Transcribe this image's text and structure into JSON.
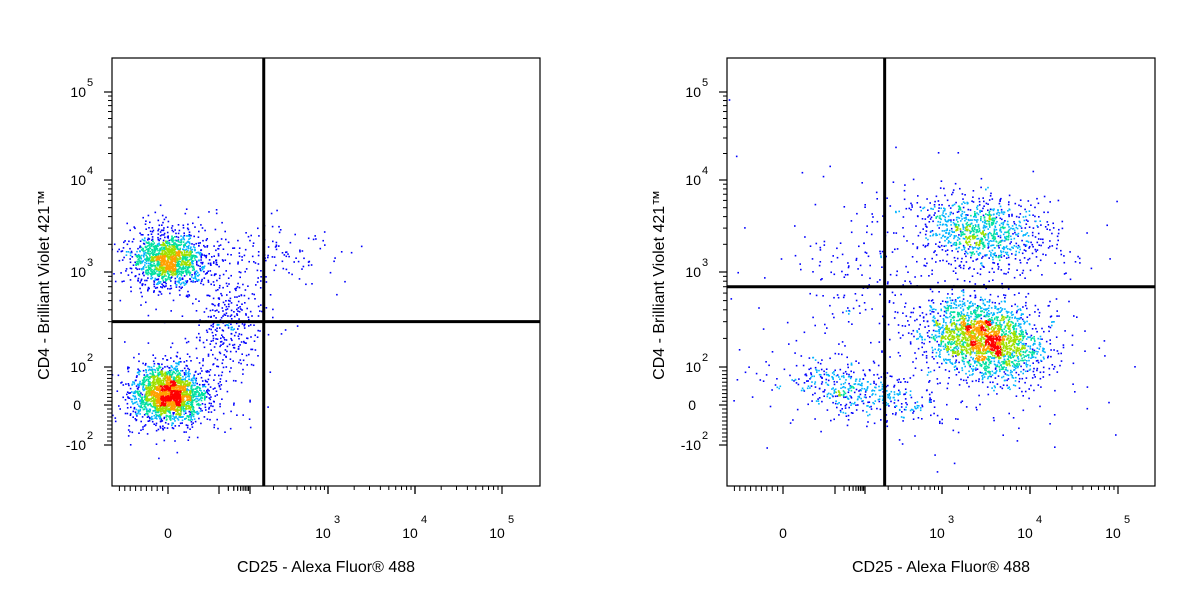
{
  "chart_data": [
    {
      "type": "scatter",
      "title": "",
      "xlabel": "CD25 - Alexa Fluor® 488",
      "ylabel": "CD4 - Brilliant Violet 421™",
      "x_scale": "biexponential",
      "y_scale": "biexponential",
      "x_ticks": [
        {
          "value": 0,
          "label": "0",
          "exp": ""
        },
        {
          "value": 1000,
          "label": "10",
          "exp": "3"
        },
        {
          "value": 10000,
          "label": "10",
          "exp": "4"
        },
        {
          "value": 100000,
          "label": "10",
          "exp": "5"
        }
      ],
      "y_ticks": [
        {
          "value": 100000,
          "label": "10",
          "exp": "5"
        },
        {
          "value": 10000,
          "label": "10",
          "exp": "4"
        },
        {
          "value": 1000,
          "label": "10",
          "exp": "3"
        },
        {
          "value": 100,
          "label": "10",
          "exp": "2"
        },
        {
          "value": 0,
          "label": "0",
          "exp": ""
        },
        {
          "value": -100,
          "label": "-10",
          "exp": "2"
        }
      ],
      "quadrant_gate": {
        "x": 150,
        "y": 300
      },
      "grid": false,
      "legend": "none",
      "colormap": [
        "#0000ff",
        "#00b4ff",
        "#00e0a0",
        "#a0e000",
        "#ffa000",
        "#ff0000"
      ],
      "populations": [
        {
          "x": 0,
          "y": 1400,
          "events": 1500
        },
        {
          "x": 0,
          "y": 30,
          "events": 2200
        },
        {
          "x": 20,
          "y": 300,
          "events": 300
        },
        {
          "x": 200,
          "y": 1500,
          "events": 120
        }
      ]
    },
    {
      "type": "scatter",
      "title": "",
      "xlabel": "CD25 - Alexa Fluor® 488",
      "ylabel": "CD4 - Brilliant Violet 421™",
      "x_scale": "biexponential",
      "y_scale": "biexponential",
      "x_ticks": [
        {
          "value": 0,
          "label": "0",
          "exp": ""
        },
        {
          "value": 1000,
          "label": "10",
          "exp": "3"
        },
        {
          "value": 10000,
          "label": "10",
          "exp": "4"
        },
        {
          "value": 100000,
          "label": "10",
          "exp": "5"
        }
      ],
      "y_ticks": [
        {
          "value": 100000,
          "label": "10",
          "exp": "5"
        },
        {
          "value": 10000,
          "label": "10",
          "exp": "4"
        },
        {
          "value": 1000,
          "label": "10",
          "exp": "3"
        },
        {
          "value": 100,
          "label": "10",
          "exp": "2"
        },
        {
          "value": 0,
          "label": "0",
          "exp": ""
        },
        {
          "value": -100,
          "label": "-10",
          "exp": "2"
        }
      ],
      "quadrant_gate": {
        "x": 180,
        "y": 700
      },
      "grid": false,
      "legend": "none",
      "colormap": [
        "#0000ff",
        "#00b4ff",
        "#00e0a0",
        "#a0e000",
        "#ffa000",
        "#ff0000"
      ],
      "populations": [
        {
          "x": 3000,
          "y": 200,
          "events": 2300
        },
        {
          "x": 2700,
          "y": 2800,
          "events": 1000
        },
        {
          "x": 50,
          "y": 40,
          "events": 500
        },
        {
          "x": 30,
          "y": 1000,
          "events": 150
        }
      ]
    }
  ]
}
